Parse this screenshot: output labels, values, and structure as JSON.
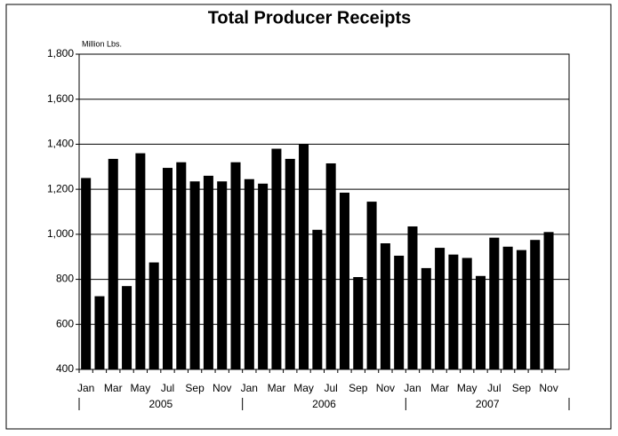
{
  "chart_data": {
    "type": "bar",
    "title": "Total Producer Receipts",
    "y_unit_label": "Million Lbs.",
    "categories": [
      "Jan",
      null,
      "Mar",
      null,
      "May",
      null,
      "Jul",
      null,
      "Sep",
      null,
      "Nov",
      null,
      "Jan",
      null,
      "Mar",
      null,
      "May",
      null,
      "Jul",
      null,
      "Sep",
      null,
      "Nov",
      null,
      "Jan",
      null,
      "Mar",
      null,
      "May",
      null,
      "Jul",
      null,
      "Sep",
      null,
      "Nov",
      null
    ],
    "groups": [
      "2005",
      "2006",
      "2007"
    ],
    "values": [
      1250,
      725,
      1335,
      770,
      1360,
      875,
      1295,
      1320,
      1235,
      1260,
      1235,
      1320,
      1245,
      1225,
      1380,
      1335,
      1400,
      1020,
      1315,
      1185,
      810,
      1145,
      960,
      905,
      1035,
      850,
      940,
      910,
      895,
      815,
      985,
      945,
      930,
      975,
      1010,
      null
    ],
    "color": "#000000",
    "ylim": [
      400,
      1800
    ],
    "yticks": [
      400,
      600,
      800,
      {
        "value": 1000,
        "label": "1,000"
      },
      {
        "value": 1200,
        "label": "1,200"
      },
      {
        "value": 1400,
        "label": "1,400"
      },
      {
        "value": 1600,
        "label": "1,600"
      },
      {
        "value": 1800,
        "label": "1,800"
      }
    ],
    "grid": true
  }
}
